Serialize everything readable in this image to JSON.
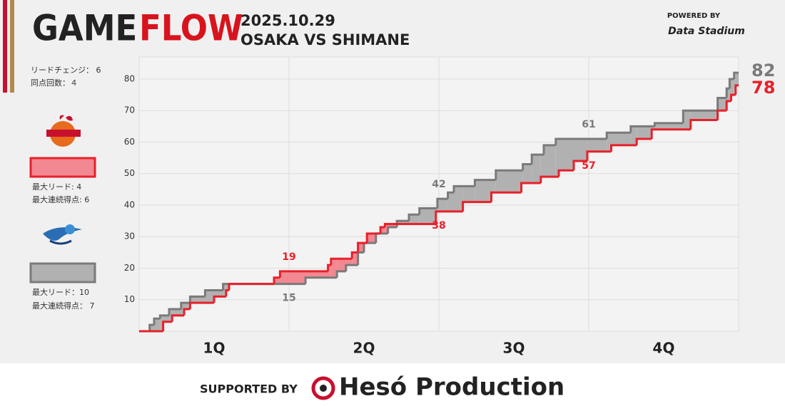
{
  "header": {
    "title_left": "GAME",
    "title_right": "FLOW",
    "date": "2025.10.29",
    "matchup": "OSAKA VS SHIMANE",
    "powered_by": "POWERED BY",
    "provider": "Data Stadium"
  },
  "summary": {
    "lead_changes": "リードチェンジ： 6",
    "ties": "同点回数：４"
  },
  "teams": [
    {
      "max_lead": "最大リード: 4",
      "max_run": "最大連続得点: 6"
    },
    {
      "max_lead": "最大リード：10",
      "max_run": "最大連続得点： 7"
    }
  ],
  "footer": {
    "supported_by": "SUPPORTED BY",
    "sponsor": "Hesó Production"
  },
  "chart_data": {
    "type": "step",
    "categories": [
      "1Q",
      "2Q",
      "3Q",
      "4Q"
    ],
    "xlim": [
      0,
      40
    ],
    "ylim": [
      0,
      87
    ],
    "yticks": [
      10,
      20,
      30,
      40,
      50,
      60,
      70,
      80
    ],
    "grid": true,
    "series": [
      {
        "color": "#e8202a",
        "fill": "#f28891",
        "x": [
          0,
          1.6,
          2.2,
          3.0,
          3.4,
          5.0,
          5.8,
          6.0,
          9.0,
          9.4,
          12.6,
          12.8,
          14.2,
          14.6,
          15.2,
          16.1,
          16.4,
          19.8,
          21.6,
          23.5,
          25.5,
          26.8,
          28.0,
          29.0,
          29.9,
          31.5,
          33.2,
          34.2,
          36.8,
          38.6,
          39.2,
          39.5,
          39.8
        ],
        "values": [
          0,
          3,
          5,
          7,
          9,
          11,
          13,
          15,
          17,
          19,
          21,
          23,
          25,
          28,
          31,
          33,
          34,
          38,
          41,
          44,
          47,
          49,
          51,
          54,
          57,
          59,
          61,
          64,
          67,
          70,
          73,
          75,
          78
        ]
      },
      {
        "color": "#7a7a7a",
        "fill": "#b1b1b1",
        "x": [
          0,
          0.7,
          1.0,
          1.4,
          2.0,
          2.8,
          3.4,
          4.4,
          5.6,
          11.1,
          13.2,
          13.8,
          14.6,
          15.0,
          15.8,
          16.6,
          17.2,
          18.0,
          18.7,
          19.9,
          20.6,
          21.0,
          22.4,
          23.8,
          25.6,
          26.2,
          27.0,
          27.8,
          31.2,
          32.8,
          34.4,
          36.3,
          38.6,
          39.2,
          39.4,
          39.7
        ],
        "values": [
          0,
          2,
          4,
          5,
          7,
          9,
          11,
          13,
          15,
          17,
          19,
          21,
          25,
          28,
          31,
          33,
          35,
          37,
          39,
          42,
          44,
          46,
          48,
          51,
          53,
          56,
          59,
          61,
          63,
          65,
          66,
          70,
          74,
          77,
          80,
          82
        ]
      }
    ],
    "annotations": [
      {
        "series": 0,
        "x": 10,
        "value": 19,
        "position": "above"
      },
      {
        "series": 1,
        "x": 10,
        "value": 15,
        "position": "below"
      },
      {
        "series": 1,
        "x": 20,
        "value": 42,
        "position": "above"
      },
      {
        "series": 0,
        "x": 20,
        "value": 38,
        "position": "below"
      },
      {
        "series": 1,
        "x": 30,
        "value": 61,
        "position": "above"
      },
      {
        "series": 0,
        "x": 30,
        "value": 57,
        "position": "below"
      },
      {
        "series": 1,
        "x": 40,
        "value": 82,
        "position": "right"
      },
      {
        "series": 0,
        "x": 40,
        "value": 78,
        "position": "right"
      }
    ]
  }
}
